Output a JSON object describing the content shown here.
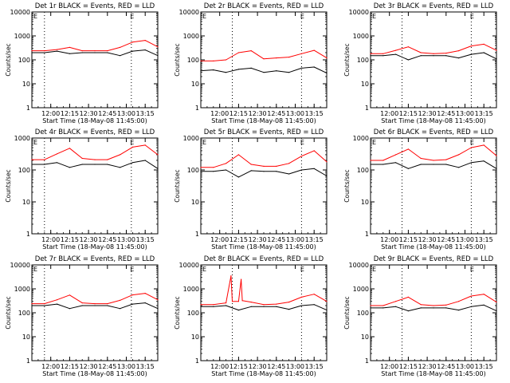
{
  "figure": {
    "background": "#ffffff",
    "events_color": "#000000",
    "lld_color": "#ff0000"
  },
  "chart_data": [
    {
      "type": "line",
      "title": "Det 1r BLACK = Events, RED = LLD",
      "ylabel": "Counts/sec",
      "xlabel": "Start Time (18-May-08 11:45:00)",
      "scale_y": "log",
      "ylim": [
        1,
        10000
      ],
      "xlim": [
        0,
        100
      ],
      "xticks": [
        {
          "label": "12:00",
          "x": 15
        },
        {
          "label": "12:15",
          "x": 30
        },
        {
          "label": "12:30",
          "x": 45
        },
        {
          "label": "12:45",
          "x": 60
        },
        {
          "label": "13:00",
          "x": 75
        },
        {
          "label": "13:15",
          "x": 90
        }
      ],
      "yticks": [
        {
          "label": "1",
          "v": 1
        },
        {
          "label": "10",
          "v": 10
        },
        {
          "label": "100",
          "v": 100
        },
        {
          "label": "1000",
          "v": 1000
        },
        {
          "label": "10000",
          "v": 10000
        }
      ],
      "markers": [
        {
          "x": 10
        },
        {
          "x": 79
        }
      ],
      "e_label": {
        "x": 78,
        "text": "E"
      },
      "series": [
        {
          "color": "#ff0000",
          "x": [
            0,
            10,
            20,
            30,
            40,
            50,
            60,
            70,
            80,
            90,
            100
          ],
          "y": [
            240,
            240,
            270,
            330,
            240,
            240,
            240,
            330,
            550,
            650,
            350
          ]
        },
        {
          "color": "#000000",
          "x": [
            0,
            10,
            20,
            30,
            40,
            50,
            60,
            70,
            80,
            90,
            100
          ],
          "y": [
            200,
            200,
            230,
            180,
            200,
            200,
            200,
            150,
            230,
            260,
            150
          ]
        }
      ]
    },
    {
      "type": "line",
      "title": "Det 2r BLACK = Events, RED = LLD",
      "ylabel": "Counts/sec",
      "xlabel": "Start Time (18-May-08 11:45:00)",
      "scale_y": "log",
      "ylim": [
        1,
        10000
      ],
      "xlim": [
        0,
        100
      ],
      "xticks": [
        {
          "label": "12:00",
          "x": 15
        },
        {
          "label": "12:15",
          "x": 30
        },
        {
          "label": "12:30",
          "x": 45
        },
        {
          "label": "12:45",
          "x": 60
        },
        {
          "label": "13:00",
          "x": 75
        },
        {
          "label": "13:15",
          "x": 90
        }
      ],
      "yticks": [
        {
          "label": "1",
          "v": 1
        },
        {
          "label": "10",
          "v": 10
        },
        {
          "label": "100",
          "v": 100
        },
        {
          "label": "1000",
          "v": 1000
        },
        {
          "label": "10000",
          "v": 10000
        }
      ],
      "markers": [
        {
          "x": 25
        },
        {
          "x": 80
        }
      ],
      "e_label": {
        "x": 79,
        "text": "E"
      },
      "series": [
        {
          "color": "#ff0000",
          "x": [
            0,
            10,
            20,
            30,
            40,
            50,
            60,
            70,
            80,
            90,
            100
          ],
          "y": [
            90,
            90,
            100,
            200,
            240,
            110,
            120,
            130,
            180,
            250,
            120
          ]
        },
        {
          "color": "#000000",
          "x": [
            0,
            10,
            20,
            30,
            40,
            50,
            60,
            70,
            80,
            90,
            100
          ],
          "y": [
            35,
            38,
            30,
            40,
            45,
            30,
            35,
            30,
            45,
            50,
            28
          ]
        }
      ]
    },
    {
      "type": "line",
      "title": "Det 3r BLACK = Events, RED = LLD",
      "ylabel": "Counts/sec",
      "xlabel": "Start Time (18-May-08 11:45:00)",
      "scale_y": "log",
      "ylim": [
        1,
        10000
      ],
      "xlim": [
        0,
        100
      ],
      "xticks": [
        {
          "label": "12:00",
          "x": 15
        },
        {
          "label": "12:15",
          "x": 30
        },
        {
          "label": "12:30",
          "x": 45
        },
        {
          "label": "12:45",
          "x": 60
        },
        {
          "label": "13:00",
          "x": 75
        },
        {
          "label": "13:15",
          "x": 90
        }
      ],
      "yticks": [
        {
          "label": "1",
          "v": 1
        },
        {
          "label": "10",
          "v": 10
        },
        {
          "label": "100",
          "v": 100
        },
        {
          "label": "1000",
          "v": 1000
        },
        {
          "label": "10000",
          "v": 10000
        }
      ],
      "markers": [
        {
          "x": 25
        },
        {
          "x": 80
        }
      ],
      "e_label": {
        "x": 79,
        "text": "E"
      },
      "series": [
        {
          "color": "#ff0000",
          "x": [
            0,
            10,
            20,
            30,
            40,
            50,
            60,
            70,
            80,
            90,
            100
          ],
          "y": [
            180,
            180,
            250,
            350,
            200,
            180,
            190,
            240,
            380,
            450,
            250
          ]
        },
        {
          "color": "#000000",
          "x": [
            0,
            10,
            20,
            30,
            40,
            50,
            60,
            70,
            80,
            90,
            100
          ],
          "y": [
            150,
            150,
            170,
            100,
            150,
            150,
            150,
            120,
            170,
            200,
            110
          ]
        }
      ]
    },
    {
      "type": "line",
      "title": "Det 4r BLACK = Events, RED = LLD",
      "ylabel": "Counts/sec",
      "xlabel": "Start Time (18-May-08 11:45:00)",
      "scale_y": "log",
      "ylim": [
        1,
        1000
      ],
      "xlim": [
        0,
        100
      ],
      "xticks": [
        {
          "label": "12:00",
          "x": 15
        },
        {
          "label": "12:15",
          "x": 30
        },
        {
          "label": "12:30",
          "x": 45
        },
        {
          "label": "12:45",
          "x": 60
        },
        {
          "label": "13:00",
          "x": 75
        },
        {
          "label": "13:15",
          "x": 90
        }
      ],
      "yticks": [
        {
          "label": "1",
          "v": 1
        },
        {
          "label": "10",
          "v": 10
        },
        {
          "label": "100",
          "v": 100
        },
        {
          "label": "1000",
          "v": 1000
        }
      ],
      "markers": [
        {
          "x": 10
        },
        {
          "x": 79
        }
      ],
      "e_label": {
        "x": 78,
        "text": "E"
      },
      "series": [
        {
          "color": "#ff0000",
          "x": [
            0,
            10,
            20,
            30,
            40,
            50,
            60,
            70,
            80,
            90,
            100
          ],
          "y": [
            210,
            210,
            320,
            480,
            230,
            210,
            210,
            300,
            520,
            600,
            300
          ]
        },
        {
          "color": "#000000",
          "x": [
            0,
            10,
            20,
            30,
            40,
            50,
            60,
            70,
            80,
            90,
            100
          ],
          "y": [
            150,
            150,
            170,
            120,
            150,
            150,
            150,
            120,
            170,
            200,
            110
          ]
        }
      ]
    },
    {
      "type": "line",
      "title": "Det 5r BLACK = Events, RED = LLD",
      "ylabel": "Counts/sec",
      "xlabel": "Start Time (18-May-08 11:45:00)",
      "scale_y": "log",
      "ylim": [
        1,
        1000
      ],
      "xlim": [
        0,
        100
      ],
      "xticks": [
        {
          "label": "12:00",
          "x": 15
        },
        {
          "label": "12:15",
          "x": 30
        },
        {
          "label": "12:30",
          "x": 45
        },
        {
          "label": "12:45",
          "x": 60
        },
        {
          "label": "13:00",
          "x": 75
        },
        {
          "label": "13:15",
          "x": 90
        }
      ],
      "yticks": [
        {
          "label": "1",
          "v": 1
        },
        {
          "label": "10",
          "v": 10
        },
        {
          "label": "100",
          "v": 100
        },
        {
          "label": "1000",
          "v": 1000
        }
      ],
      "markers": [
        {
          "x": 25
        },
        {
          "x": 80
        }
      ],
      "e_label": {
        "x": 79,
        "text": "E"
      },
      "series": [
        {
          "color": "#ff0000",
          "x": [
            0,
            10,
            20,
            30,
            40,
            50,
            60,
            70,
            80,
            90,
            100
          ],
          "y": [
            120,
            120,
            160,
            300,
            150,
            130,
            130,
            160,
            270,
            400,
            180
          ]
        },
        {
          "color": "#000000",
          "x": [
            0,
            10,
            20,
            30,
            40,
            50,
            60,
            70,
            80,
            90,
            100
          ],
          "y": [
            90,
            90,
            100,
            60,
            95,
            90,
            90,
            75,
            100,
            110,
            65
          ]
        }
      ]
    },
    {
      "type": "line",
      "title": "Det 6r BLACK = Events, RED = LLD",
      "ylabel": "Counts/sec",
      "xlabel": "Start Time (18-May-08 11:45:00)",
      "scale_y": "log",
      "ylim": [
        1,
        1000
      ],
      "xlim": [
        0,
        100
      ],
      "xticks": [
        {
          "label": "12:00",
          "x": 15
        },
        {
          "label": "12:15",
          "x": 30
        },
        {
          "label": "12:30",
          "x": 45
        },
        {
          "label": "12:45",
          "x": 60
        },
        {
          "label": "13:00",
          "x": 75
        },
        {
          "label": "13:15",
          "x": 90
        }
      ],
      "yticks": [
        {
          "label": "1",
          "v": 1
        },
        {
          "label": "10",
          "v": 10
        },
        {
          "label": "100",
          "v": 100
        },
        {
          "label": "1000",
          "v": 1000
        }
      ],
      "markers": [
        {
          "x": 25
        },
        {
          "x": 80
        }
      ],
      "e_label": {
        "x": 79,
        "text": "E"
      },
      "series": [
        {
          "color": "#ff0000",
          "x": [
            0,
            10,
            20,
            30,
            40,
            50,
            60,
            70,
            80,
            90,
            100
          ],
          "y": [
            200,
            200,
            300,
            450,
            230,
            200,
            210,
            300,
            500,
            600,
            280
          ]
        },
        {
          "color": "#000000",
          "x": [
            0,
            10,
            20,
            30,
            40,
            50,
            60,
            70,
            80,
            90,
            100
          ],
          "y": [
            150,
            150,
            170,
            110,
            150,
            150,
            150,
            120,
            170,
            190,
            110
          ]
        }
      ]
    },
    {
      "type": "line",
      "title": "Det 7r BLACK = Events, RED = LLD",
      "ylabel": "Counts/sec",
      "xlabel": "Start Time (18-May-08 11:45:00)",
      "scale_y": "log",
      "ylim": [
        1,
        10000
      ],
      "xlim": [
        0,
        100
      ],
      "xticks": [
        {
          "label": "12:00",
          "x": 15
        },
        {
          "label": "12:15",
          "x": 30
        },
        {
          "label": "12:30",
          "x": 45
        },
        {
          "label": "12:45",
          "x": 60
        },
        {
          "label": "13:00",
          "x": 75
        },
        {
          "label": "13:15",
          "x": 90
        }
      ],
      "yticks": [
        {
          "label": "1",
          "v": 1
        },
        {
          "label": "10",
          "v": 10
        },
        {
          "label": "100",
          "v": 100
        },
        {
          "label": "1000",
          "v": 1000
        },
        {
          "label": "10000",
          "v": 10000
        }
      ],
      "markers": [
        {
          "x": 10
        },
        {
          "x": 79
        }
      ],
      "e_label": {
        "x": 78,
        "text": "E"
      },
      "series": [
        {
          "color": "#ff0000",
          "x": [
            0,
            10,
            20,
            30,
            40,
            50,
            60,
            70,
            80,
            90,
            100
          ],
          "y": [
            240,
            240,
            350,
            550,
            260,
            240,
            240,
            330,
            560,
            650,
            350
          ]
        },
        {
          "color": "#000000",
          "x": [
            0,
            10,
            20,
            30,
            40,
            50,
            60,
            70,
            80,
            90,
            100
          ],
          "y": [
            200,
            200,
            230,
            150,
            200,
            200,
            200,
            150,
            230,
            260,
            150
          ]
        }
      ]
    },
    {
      "type": "line",
      "title": "Det 8r BLACK = Events, RED = LLD",
      "ylabel": "Counts/sec",
      "xlabel": "Start Time (18-May-08 11:45:00)",
      "scale_y": "log",
      "ylim": [
        1,
        10000
      ],
      "xlim": [
        0,
        100
      ],
      "xticks": [
        {
          "label": "12:00",
          "x": 15
        },
        {
          "label": "12:15",
          "x": 30
        },
        {
          "label": "12:30",
          "x": 45
        },
        {
          "label": "12:45",
          "x": 60
        },
        {
          "label": "13:00",
          "x": 75
        },
        {
          "label": "13:15",
          "x": 90
        }
      ],
      "yticks": [
        {
          "label": "1",
          "v": 1
        },
        {
          "label": "10",
          "v": 10
        },
        {
          "label": "100",
          "v": 100
        },
        {
          "label": "1000",
          "v": 1000
        },
        {
          "label": "10000",
          "v": 10000
        }
      ],
      "markers": [
        {
          "x": 25
        },
        {
          "x": 80
        }
      ],
      "e_label": {
        "x": 79,
        "text": "E"
      },
      "series": [
        {
          "color": "#ff0000",
          "x": [
            0,
            10,
            20,
            24,
            25,
            30,
            32,
            33,
            40,
            50,
            60,
            70,
            80,
            90,
            100
          ],
          "y": [
            220,
            220,
            260,
            3500,
            300,
            300,
            2500,
            320,
            280,
            220,
            230,
            280,
            450,
            600,
            300
          ]
        },
        {
          "color": "#000000",
          "x": [
            0,
            10,
            20,
            30,
            40,
            50,
            60,
            70,
            80,
            90,
            100
          ],
          "y": [
            180,
            180,
            200,
            130,
            180,
            180,
            180,
            140,
            200,
            220,
            130
          ]
        }
      ]
    },
    {
      "type": "line",
      "title": "Det 9r BLACK = Events, RED = LLD",
      "ylabel": "Counts/sec",
      "xlabel": "Start Time (18-May-08 11:45:00)",
      "scale_y": "log",
      "ylim": [
        1,
        10000
      ],
      "xlim": [
        0,
        100
      ],
      "xticks": [
        {
          "label": "12:00",
          "x": 15
        },
        {
          "label": "12:15",
          "x": 30
        },
        {
          "label": "12:30",
          "x": 45
        },
        {
          "label": "12:45",
          "x": 60
        },
        {
          "label": "13:00",
          "x": 75
        },
        {
          "label": "13:15",
          "x": 90
        }
      ],
      "yticks": [
        {
          "label": "1",
          "v": 1
        },
        {
          "label": "10",
          "v": 10
        },
        {
          "label": "100",
          "v": 100
        },
        {
          "label": "1000",
          "v": 1000
        },
        {
          "label": "10000",
          "v": 10000
        }
      ],
      "markers": [
        {
          "x": 25
        },
        {
          "x": 80
        }
      ],
      "e_label": {
        "x": 79,
        "text": "E"
      },
      "series": [
        {
          "color": "#ff0000",
          "x": [
            0,
            10,
            20,
            30,
            40,
            50,
            60,
            70,
            80,
            90,
            100
          ],
          "y": [
            200,
            200,
            300,
            450,
            220,
            200,
            210,
            300,
            500,
            600,
            280
          ]
        },
        {
          "color": "#000000",
          "x": [
            0,
            10,
            20,
            30,
            40,
            50,
            60,
            70,
            80,
            90,
            100
          ],
          "y": [
            160,
            160,
            180,
            120,
            160,
            160,
            160,
            130,
            180,
            210,
            120
          ]
        }
      ]
    }
  ]
}
